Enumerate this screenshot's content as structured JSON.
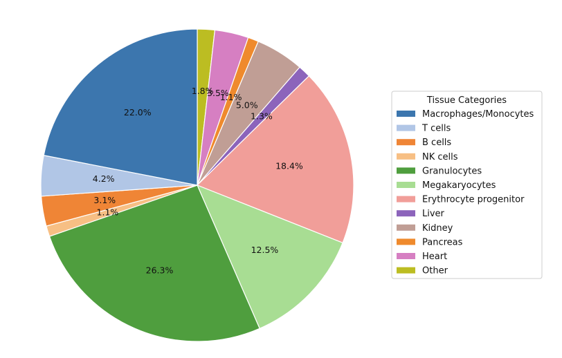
{
  "chart_data": {
    "type": "pie",
    "start_angle_deg": 90,
    "direction": "clockwise",
    "slices": [
      {
        "label": "Other",
        "value": 1.8,
        "pct_label": "1.8%",
        "color": "#bcbd22"
      },
      {
        "label": "Heart",
        "value": 3.5,
        "pct_label": "3.5%",
        "color": "#d67fc2"
      },
      {
        "label": "Pancreas",
        "value": 1.1,
        "pct_label": "1.1%",
        "color": "#ef8a2d"
      },
      {
        "label": "Kidney",
        "value": 5.0,
        "pct_label": "5.0%",
        "color": "#c09e95"
      },
      {
        "label": "Liver",
        "value": 1.3,
        "pct_label": "1.3%",
        "color": "#8c64bb"
      },
      {
        "label": "Erythrocyte progenitor",
        "value": 18.4,
        "pct_label": "18.4%",
        "color": "#f19e99"
      },
      {
        "label": "Megakaryocytes",
        "value": 12.5,
        "pct_label": "12.5%",
        "color": "#a8dd93"
      },
      {
        "label": "Granulocytes",
        "value": 26.3,
        "pct_label": "26.3%",
        "color": "#4f9e3e"
      },
      {
        "label": "NK cells",
        "value": 1.1,
        "pct_label": "1.1%",
        "color": "#f7bf84"
      },
      {
        "label": "B cells",
        "value": 3.1,
        "pct_label": "3.1%",
        "color": "#ef8536"
      },
      {
        "label": "T cells",
        "value": 4.2,
        "pct_label": "4.2%",
        "color": "#b1c6e6"
      },
      {
        "label": "Macrophages/Monocytes",
        "value": 22.0,
        "pct_label": "22.0%",
        "color": "#3c76ae"
      }
    ],
    "legend": {
      "title": "Tissue Categories",
      "placement": "right",
      "entries": [
        {
          "label": "Macrophages/Monocytes",
          "color": "#3c76ae"
        },
        {
          "label": "T cells",
          "color": "#b1c6e6"
        },
        {
          "label": "B cells",
          "color": "#ef8536"
        },
        {
          "label": "NK cells",
          "color": "#f7bf84"
        },
        {
          "label": "Granulocytes",
          "color": "#4f9e3e"
        },
        {
          "label": "Megakaryocytes",
          "color": "#a8dd93"
        },
        {
          "label": "Erythrocyte progenitor",
          "color": "#f19e99"
        },
        {
          "label": "Liver",
          "color": "#8c64bb"
        },
        {
          "label": "Kidney",
          "color": "#c09e95"
        },
        {
          "label": "Pancreas",
          "color": "#ef8a2d"
        },
        {
          "label": "Heart",
          "color": "#d67fc2"
        },
        {
          "label": "Other",
          "color": "#bcbd22"
        }
      ]
    }
  }
}
